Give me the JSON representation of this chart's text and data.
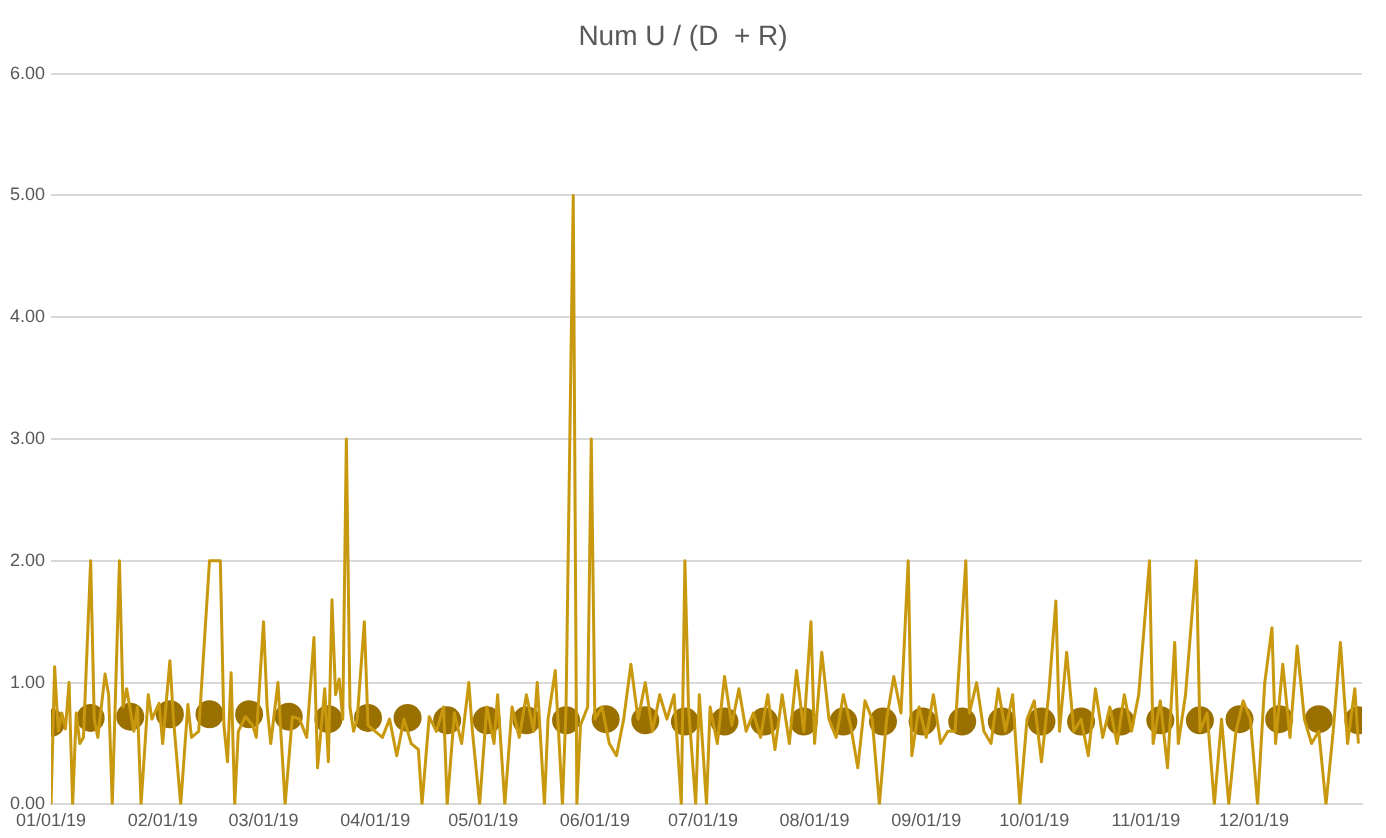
{
  "chart_data": {
    "type": "line",
    "title": "Num U / (D  + R)",
    "grid": "y",
    "legend": false,
    "line_style": "solid",
    "xlim": [
      "2019-01-01",
      "2019-12-31"
    ],
    "xticks": [
      {
        "value": "2019-01-01",
        "label": "01/01/19"
      },
      {
        "value": "2019-02-01",
        "label": "02/01/19"
      },
      {
        "value": "2019-03-01",
        "label": "03/01/19"
      },
      {
        "value": "2019-04-01",
        "label": "04/01/19"
      },
      {
        "value": "2019-05-01",
        "label": "05/01/19"
      },
      {
        "value": "2019-06-01",
        "label": "06/01/19"
      },
      {
        "value": "2019-07-01",
        "label": "07/01/19"
      },
      {
        "value": "2019-08-01",
        "label": "08/01/19"
      },
      {
        "value": "2019-09-01",
        "label": "09/01/19"
      },
      {
        "value": "2019-10-01",
        "label": "10/01/19"
      },
      {
        "value": "2019-11-01",
        "label": "11/01/19"
      },
      {
        "value": "2019-12-01",
        "label": "12/01/19"
      }
    ],
    "ylim": [
      0,
      6
    ],
    "yticks": [
      {
        "value": 0,
        "label": "0.00"
      },
      {
        "value": 1,
        "label": "1.00"
      },
      {
        "value": 2,
        "label": "2.00"
      },
      {
        "value": 3,
        "label": "3.00"
      },
      {
        "value": 4,
        "label": "4.00"
      },
      {
        "value": 5,
        "label": "5.00"
      },
      {
        "value": 6,
        "label": "6.00"
      }
    ],
    "series": [
      {
        "color": "#c8980e",
        "marker": "none",
        "x": [
          "2019-01-01",
          "2019-01-02",
          "2019-01-03",
          "2019-01-04",
          "2019-01-05",
          "2019-01-06",
          "2019-01-07",
          "2019-01-08",
          "2019-01-09",
          "2019-01-10",
          "2019-01-12",
          "2019-01-13",
          "2019-01-14",
          "2019-01-16",
          "2019-01-17",
          "2019-01-18",
          "2019-01-20",
          "2019-01-21",
          "2019-01-22",
          "2019-01-24",
          "2019-01-25",
          "2019-01-26",
          "2019-01-28",
          "2019-01-29",
          "2019-01-31",
          "2019-02-01",
          "2019-02-03",
          "2019-02-04",
          "2019-02-06",
          "2019-02-08",
          "2019-02-09",
          "2019-02-11",
          "2019-02-14",
          "2019-02-17",
          "2019-02-18",
          "2019-02-19",
          "2019-02-20",
          "2019-02-21",
          "2019-02-22",
          "2019-02-24",
          "2019-02-26",
          "2019-02-27",
          "2019-03-01",
          "2019-03-02",
          "2019-03-03",
          "2019-03-05",
          "2019-03-06",
          "2019-03-07",
          "2019-03-09",
          "2019-03-11",
          "2019-03-13",
          "2019-03-15",
          "2019-03-16",
          "2019-03-18",
          "2019-03-19",
          "2019-03-20",
          "2019-03-21",
          "2019-03-22",
          "2019-03-23",
          "2019-03-24",
          "2019-03-25",
          "2019-03-26",
          "2019-03-27",
          "2019-03-29",
          "2019-03-30",
          "2019-04-01",
          "2019-04-03",
          "2019-04-05",
          "2019-04-07",
          "2019-04-09",
          "2019-04-11",
          "2019-04-13",
          "2019-04-14",
          "2019-04-16",
          "2019-04-18",
          "2019-04-20",
          "2019-04-21",
          "2019-04-23",
          "2019-04-25",
          "2019-04-27",
          "2019-04-28",
          "2019-04-30",
          "2019-05-02",
          "2019-05-04",
          "2019-05-05",
          "2019-05-07",
          "2019-05-09",
          "2019-05-11",
          "2019-05-13",
          "2019-05-15",
          "2019-05-16",
          "2019-05-18",
          "2019-05-19",
          "2019-05-21",
          "2019-05-23",
          "2019-05-24",
          "2019-05-26",
          "2019-05-27",
          "2019-05-28",
          "2019-05-30",
          "2019-05-31",
          "2019-06-01",
          "2019-06-03",
          "2019-06-05",
          "2019-06-07",
          "2019-06-09",
          "2019-06-11",
          "2019-06-13",
          "2019-06-15",
          "2019-06-17",
          "2019-06-19",
          "2019-06-21",
          "2019-06-23",
          "2019-06-25",
          "2019-06-26",
          "2019-06-27",
          "2019-06-29",
          "2019-06-30",
          "2019-07-02",
          "2019-07-03",
          "2019-07-05",
          "2019-07-07",
          "2019-07-09",
          "2019-07-11",
          "2019-07-13",
          "2019-07-15",
          "2019-07-17",
          "2019-07-19",
          "2019-07-21",
          "2019-07-23",
          "2019-07-25",
          "2019-07-27",
          "2019-07-29",
          "2019-07-31",
          "2019-08-01",
          "2019-08-03",
          "2019-08-05",
          "2019-08-07",
          "2019-08-09",
          "2019-08-11",
          "2019-08-13",
          "2019-08-15",
          "2019-08-17",
          "2019-08-19",
          "2019-08-21",
          "2019-08-23",
          "2019-08-25",
          "2019-08-27",
          "2019-08-28",
          "2019-08-30",
          "2019-09-01",
          "2019-09-03",
          "2019-09-05",
          "2019-09-07",
          "2019-09-09",
          "2019-09-12",
          "2019-09-13",
          "2019-09-15",
          "2019-09-17",
          "2019-09-19",
          "2019-09-21",
          "2019-09-23",
          "2019-09-25",
          "2019-09-27",
          "2019-09-29",
          "2019-10-01",
          "2019-10-03",
          "2019-10-05",
          "2019-10-07",
          "2019-10-08",
          "2019-10-10",
          "2019-10-12",
          "2019-10-14",
          "2019-10-16",
          "2019-10-18",
          "2019-10-20",
          "2019-10-22",
          "2019-10-24",
          "2019-10-26",
          "2019-10-28",
          "2019-10-30",
          "2019-11-02",
          "2019-11-03",
          "2019-11-05",
          "2019-11-07",
          "2019-11-09",
          "2019-11-10",
          "2019-11-12",
          "2019-11-15",
          "2019-11-16",
          "2019-11-18",
          "2019-11-20",
          "2019-11-22",
          "2019-11-24",
          "2019-11-26",
          "2019-11-28",
          "2019-11-30",
          "2019-12-02",
          "2019-12-04",
          "2019-12-06",
          "2019-12-07",
          "2019-12-09",
          "2019-12-11",
          "2019-12-13",
          "2019-12-15",
          "2019-12-17",
          "2019-12-19",
          "2019-12-21",
          "2019-12-23",
          "2019-12-25",
          "2019-12-27",
          "2019-12-29",
          "2019-12-30"
        ],
        "values": [
          0,
          1.13,
          0.6,
          0.75,
          0.62,
          1.0,
          0,
          0.75,
          0.5,
          0.55,
          2.0,
          0.7,
          0.55,
          1.07,
          0.9,
          0,
          2.0,
          0.8,
          0.95,
          0.6,
          0.8,
          0,
          0.9,
          0.7,
          0.83,
          0.5,
          1.18,
          0.7,
          0,
          0.82,
          0.55,
          0.6,
          2.0,
          2.0,
          0.65,
          0.35,
          1.08,
          0,
          0.6,
          0.72,
          0.65,
          0.55,
          1.5,
          0.8,
          0.5,
          1.0,
          0.5,
          0,
          0.72,
          0.7,
          0.55,
          1.37,
          0.3,
          0.95,
          0.35,
          1.68,
          0.9,
          1.03,
          0.7,
          3.0,
          0.8,
          0.6,
          0.7,
          1.5,
          0.65,
          0.6,
          0.55,
          0.7,
          0.4,
          0.7,
          0.5,
          0.45,
          0,
          0.72,
          0.6,
          0.8,
          0,
          0.75,
          0.5,
          1.0,
          0.6,
          0,
          0.8,
          0.5,
          0.9,
          0,
          0.8,
          0.55,
          0.9,
          0.6,
          1.0,
          0,
          0.7,
          1.1,
          0,
          0.8,
          5.0,
          0,
          0.65,
          0.8,
          3.0,
          0.7,
          0.8,
          0.5,
          0.4,
          0.7,
          1.15,
          0.7,
          1.0,
          0.6,
          0.9,
          0.7,
          0.9,
          0,
          2.0,
          0.8,
          0,
          0.9,
          0,
          0.8,
          0.5,
          1.05,
          0.65,
          0.95,
          0.6,
          0.75,
          0.55,
          0.9,
          0.45,
          0.9,
          0.5,
          1.1,
          0.6,
          1.5,
          0.5,
          1.25,
          0.7,
          0.55,
          0.9,
          0.65,
          0.3,
          0.85,
          0.7,
          0,
          0.7,
          1.05,
          0.75,
          2.0,
          0.4,
          0.8,
          0.55,
          0.9,
          0.5,
          0.6,
          0.6,
          2.0,
          0.75,
          1.0,
          0.6,
          0.5,
          0.95,
          0.6,
          0.9,
          0,
          0.7,
          0.85,
          0.35,
          0.9,
          1.67,
          0.6,
          1.25,
          0.6,
          0.7,
          0.4,
          0.95,
          0.55,
          0.8,
          0.5,
          0.9,
          0.6,
          0.9,
          2.0,
          0.5,
          0.85,
          0.3,
          1.33,
          0.5,
          0.9,
          2.0,
          0.6,
          0.75,
          0,
          0.7,
          0,
          0.6,
          0.85,
          0.7,
          0,
          1.0,
          1.45,
          0.5,
          1.15,
          0.55,
          1.3,
          0.7,
          0.5,
          0.6,
          0,
          0.6,
          1.33,
          0.5,
          0.95,
          0.5
        ]
      },
      {
        "type": "scatter",
        "color": "#9a7000",
        "marker": "circle",
        "x": [
          "2019-01-01",
          "2019-01-12",
          "2019-01-23",
          "2019-02-03",
          "2019-02-14",
          "2019-02-25",
          "2019-03-08",
          "2019-03-19",
          "2019-03-30",
          "2019-04-10",
          "2019-04-21",
          "2019-05-02",
          "2019-05-13",
          "2019-05-24",
          "2019-06-04",
          "2019-06-15",
          "2019-06-26",
          "2019-07-07",
          "2019-07-18",
          "2019-07-29",
          "2019-08-09",
          "2019-08-20",
          "2019-08-31",
          "2019-09-11",
          "2019-09-22",
          "2019-10-03",
          "2019-10-14",
          "2019-10-25",
          "2019-11-05",
          "2019-11-16",
          "2019-11-27",
          "2019-12-08",
          "2019-12-19",
          "2019-12-30"
        ],
        "values": [
          0.67,
          0.71,
          0.72,
          0.74,
          0.74,
          0.74,
          0.72,
          0.7,
          0.71,
          0.71,
          0.69,
          0.69,
          0.69,
          0.69,
          0.7,
          0.69,
          0.68,
          0.68,
          0.68,
          0.68,
          0.68,
          0.68,
          0.68,
          0.68,
          0.68,
          0.68,
          0.68,
          0.68,
          0.69,
          0.69,
          0.7,
          0.7,
          0.7,
          0.69
        ]
      }
    ]
  }
}
